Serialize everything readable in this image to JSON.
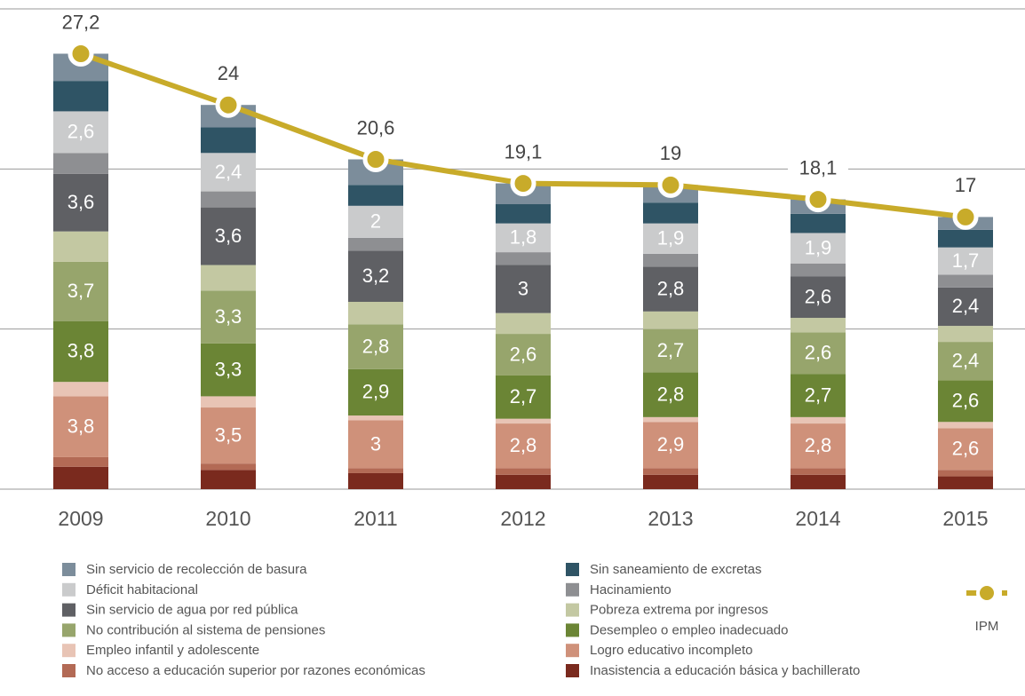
{
  "chart_data": {
    "type": "bar",
    "stacked": true,
    "categories": [
      "2009",
      "2010",
      "2011",
      "2012",
      "2013",
      "2014",
      "2015"
    ],
    "ylim": [
      0,
      30
    ],
    "yticks": [
      0,
      10,
      20,
      30
    ],
    "grid": true,
    "series": [
      {
        "name": "Inasistencia a educación básica y bachillerato",
        "color": "#7a2a1e",
        "values": [
          1.4,
          1.2,
          1.0,
          0.9,
          0.9,
          0.9,
          0.8
        ],
        "value_labels": [
          null,
          null,
          null,
          null,
          null,
          null,
          null
        ]
      },
      {
        "name": "No acceso a educación superior por razones económicas",
        "color": "#b36a55",
        "values": [
          0.6,
          0.4,
          0.3,
          0.4,
          0.4,
          0.4,
          0.4
        ],
        "value_labels": [
          null,
          null,
          null,
          null,
          null,
          null,
          null
        ]
      },
      {
        "name": "Logro educativo incompleto",
        "color": "#cf917a",
        "values": [
          3.8,
          3.5,
          3,
          2.8,
          2.9,
          2.8,
          2.6
        ],
        "value_labels": [
          "3,8",
          "3,5",
          "3",
          "2,8",
          "2,9",
          "2,8",
          "2,6"
        ]
      },
      {
        "name": "Empleo infantil y adolescente",
        "color": "#e8c4b5",
        "values": [
          0.9,
          0.7,
          0.3,
          0.3,
          0.3,
          0.4,
          0.4
        ],
        "value_labels": [
          null,
          null,
          null,
          null,
          null,
          null,
          null
        ]
      },
      {
        "name": "Desempleo o empleo inadecuado",
        "color": "#6b8535",
        "values": [
          3.8,
          3.3,
          2.9,
          2.7,
          2.8,
          2.7,
          2.6
        ],
        "value_labels": [
          "3,8",
          "3,3",
          "2,9",
          "2,7",
          "2,8",
          "2,7",
          "2,6"
        ]
      },
      {
        "name": "No contribución al sistema de pensiones",
        "color": "#97a56c",
        "values": [
          3.7,
          3.3,
          2.8,
          2.6,
          2.7,
          2.6,
          2.4
        ],
        "value_labels": [
          "3,7",
          "3,3",
          "2,8",
          "2,6",
          "2,7",
          "2,6",
          "2,4"
        ]
      },
      {
        "name": "Pobreza extrema por ingresos",
        "color": "#c3c8a2",
        "values": [
          1.9,
          1.6,
          1.4,
          1.3,
          1.1,
          0.9,
          1.0
        ],
        "value_labels": [
          null,
          null,
          null,
          null,
          null,
          null,
          null
        ]
      },
      {
        "name": "Sin servicio de agua por red pública",
        "color": "#5f6064",
        "values": [
          3.6,
          3.6,
          3.2,
          3,
          2.8,
          2.6,
          2.4
        ],
        "value_labels": [
          "3,6",
          "3,6",
          "3,2",
          "3",
          "2,8",
          "2,6",
          "2,4"
        ]
      },
      {
        "name": "Hacinamiento",
        "color": "#8e8f92",
        "values": [
          1.3,
          1.0,
          0.8,
          0.8,
          0.8,
          0.8,
          0.8
        ],
        "value_labels": [
          null,
          null,
          null,
          null,
          null,
          null,
          null
        ]
      },
      {
        "name": "Déficit habitacional",
        "color": "#cacbcc",
        "values": [
          2.6,
          2.4,
          2,
          1.8,
          1.9,
          1.9,
          1.7
        ],
        "value_labels": [
          "2,6",
          "2,4",
          "2",
          "1,8",
          "1,9",
          "1,9",
          "1,7"
        ]
      },
      {
        "name": "Sin saneamiento de excretas",
        "color": "#2f5465",
        "values": [
          1.9,
          1.6,
          1.3,
          1.2,
          1.3,
          1.2,
          1.1
        ],
        "value_labels": [
          null,
          null,
          null,
          null,
          null,
          null,
          null
        ]
      },
      {
        "name": "Sin servicio de recolección de basura",
        "color": "#7c8d9b",
        "values": [
          1.7,
          1.4,
          1.6,
          1.3,
          1.1,
          0.9,
          0.8
        ],
        "value_labels": [
          null,
          null,
          null,
          null,
          null,
          null,
          null
        ]
      }
    ],
    "line_series": {
      "name": "IPM",
      "color": "#c8ab2a",
      "values": [
        27.2,
        24,
        20.6,
        19.1,
        19,
        18.1,
        17
      ],
      "value_labels": [
        "27,2",
        "24",
        "20,6",
        "19,1",
        "19",
        "18,1",
        "17"
      ]
    }
  }
}
